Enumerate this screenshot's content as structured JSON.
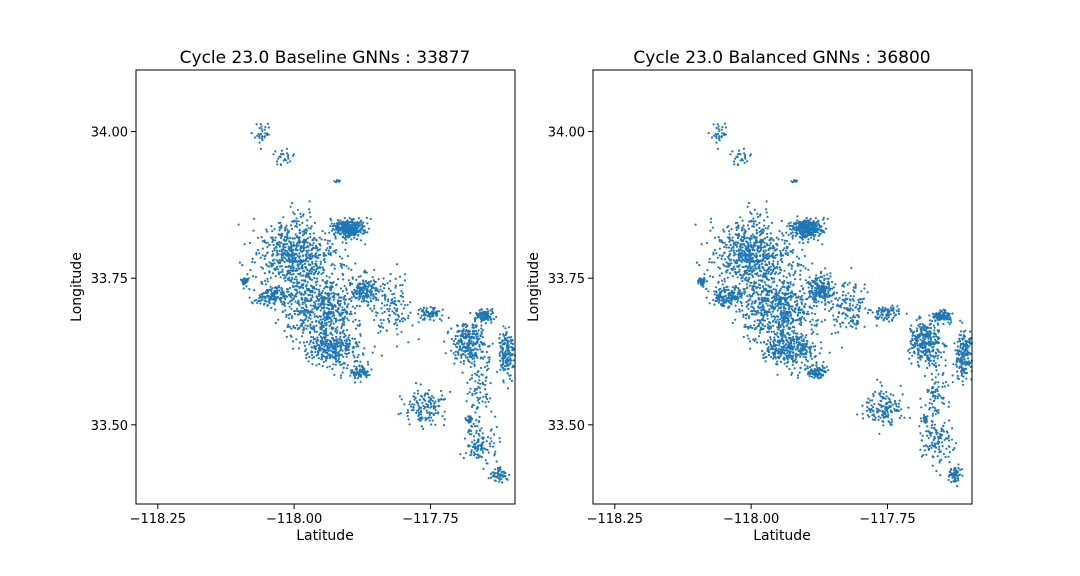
{
  "figure": {
    "background": "#ffffff"
  },
  "chart_data": [
    {
      "type": "scatter",
      "title": "Cycle 23.0 Baseline GNNs : 33877",
      "xlabel": "Latitude",
      "ylabel": "Longitude",
      "xlim": [
        -118.29,
        -117.595
      ],
      "ylim": [
        33.365,
        34.105
      ],
      "xticks": [
        -118.25,
        -118.0,
        -117.75
      ],
      "xtick_labels": [
        "−118.25",
        "−118.00",
        "−117.75"
      ],
      "yticks": [
        33.5,
        33.75,
        34.0
      ],
      "ytick_labels": [
        "33.50",
        "33.75",
        "34.00"
      ],
      "grid": false,
      "marker_color": "#1f77b4",
      "point_count": 33877,
      "clusters": [
        {
          "x": -118.06,
          "y": 33.99,
          "spread_x": 0.02,
          "spread_y": 0.02,
          "n": 30
        },
        {
          "x": -118.02,
          "y": 33.955,
          "spread_x": 0.015,
          "spread_y": 0.012,
          "n": 25
        },
        {
          "x": -117.92,
          "y": 33.915,
          "spread_x": 0.005,
          "spread_y": 0.003,
          "n": 8
        },
        {
          "x": -118.0,
          "y": 33.79,
          "spread_x": 0.055,
          "spread_y": 0.05,
          "n": 650
        },
        {
          "x": -117.9,
          "y": 33.835,
          "spread_x": 0.025,
          "spread_y": 0.015,
          "n": 320
        },
        {
          "x": -118.04,
          "y": 33.72,
          "spread_x": 0.03,
          "spread_y": 0.015,
          "n": 140
        },
        {
          "x": -118.09,
          "y": 33.745,
          "spread_x": 0.006,
          "spread_y": 0.005,
          "n": 40
        },
        {
          "x": -117.95,
          "y": 33.7,
          "spread_x": 0.06,
          "spread_y": 0.05,
          "n": 600
        },
        {
          "x": -117.93,
          "y": 33.63,
          "spread_x": 0.04,
          "spread_y": 0.025,
          "n": 300
        },
        {
          "x": -117.88,
          "y": 33.59,
          "spread_x": 0.015,
          "spread_y": 0.01,
          "n": 80
        },
        {
          "x": -117.87,
          "y": 33.73,
          "spread_x": 0.02,
          "spread_y": 0.02,
          "n": 150
        },
        {
          "x": -117.82,
          "y": 33.7,
          "spread_x": 0.03,
          "spread_y": 0.04,
          "n": 120
        },
        {
          "x": -117.75,
          "y": 33.69,
          "spread_x": 0.02,
          "spread_y": 0.01,
          "n": 70
        },
        {
          "x": -117.68,
          "y": 33.64,
          "spread_x": 0.025,
          "spread_y": 0.03,
          "n": 250
        },
        {
          "x": -117.65,
          "y": 33.685,
          "spread_x": 0.015,
          "spread_y": 0.008,
          "n": 90
        },
        {
          "x": -117.61,
          "y": 33.62,
          "spread_x": 0.012,
          "spread_y": 0.035,
          "n": 160
        },
        {
          "x": -117.66,
          "y": 33.57,
          "spread_x": 0.02,
          "spread_y": 0.06,
          "n": 90
        },
        {
          "x": -117.76,
          "y": 33.53,
          "spread_x": 0.03,
          "spread_y": 0.025,
          "n": 140
        },
        {
          "x": -117.66,
          "y": 33.47,
          "spread_x": 0.025,
          "spread_y": 0.03,
          "n": 110
        },
        {
          "x": -117.625,
          "y": 33.415,
          "spread_x": 0.012,
          "spread_y": 0.012,
          "n": 60
        },
        {
          "x": -117.68,
          "y": 33.51,
          "spread_x": 0.006,
          "spread_y": 0.005,
          "n": 25
        }
      ]
    },
    {
      "type": "scatter",
      "title": "Cycle 23.0 Balanced GNNs : 36800",
      "xlabel": "Latitude",
      "ylabel": "Longitude",
      "xlim": [
        -118.29,
        -117.595
      ],
      "ylim": [
        33.365,
        34.105
      ],
      "xticks": [
        -118.25,
        -118.0,
        -117.75
      ],
      "xtick_labels": [
        "−118.25",
        "−118.00",
        "−117.75"
      ],
      "yticks": [
        33.5,
        33.75,
        34.0
      ],
      "ytick_labels": [
        "33.50",
        "33.75",
        "34.00"
      ],
      "grid": false,
      "marker_color": "#1f77b4",
      "point_count": 36800,
      "clusters": [
        {
          "x": -118.06,
          "y": 33.99,
          "spread_x": 0.02,
          "spread_y": 0.02,
          "n": 30
        },
        {
          "x": -118.02,
          "y": 33.955,
          "spread_x": 0.015,
          "spread_y": 0.012,
          "n": 25
        },
        {
          "x": -117.92,
          "y": 33.915,
          "spread_x": 0.005,
          "spread_y": 0.003,
          "n": 8
        },
        {
          "x": -118.0,
          "y": 33.79,
          "spread_x": 0.055,
          "spread_y": 0.05,
          "n": 700
        },
        {
          "x": -117.9,
          "y": 33.835,
          "spread_x": 0.025,
          "spread_y": 0.015,
          "n": 340
        },
        {
          "x": -118.04,
          "y": 33.72,
          "spread_x": 0.03,
          "spread_y": 0.015,
          "n": 150
        },
        {
          "x": -118.09,
          "y": 33.745,
          "spread_x": 0.006,
          "spread_y": 0.005,
          "n": 40
        },
        {
          "x": -117.95,
          "y": 33.7,
          "spread_x": 0.06,
          "spread_y": 0.05,
          "n": 640
        },
        {
          "x": -117.93,
          "y": 33.63,
          "spread_x": 0.04,
          "spread_y": 0.025,
          "n": 320
        },
        {
          "x": -117.88,
          "y": 33.59,
          "spread_x": 0.015,
          "spread_y": 0.01,
          "n": 85
        },
        {
          "x": -117.87,
          "y": 33.73,
          "spread_x": 0.02,
          "spread_y": 0.02,
          "n": 160
        },
        {
          "x": -117.82,
          "y": 33.7,
          "spread_x": 0.03,
          "spread_y": 0.04,
          "n": 130
        },
        {
          "x": -117.75,
          "y": 33.69,
          "spread_x": 0.02,
          "spread_y": 0.01,
          "n": 75
        },
        {
          "x": -117.68,
          "y": 33.64,
          "spread_x": 0.025,
          "spread_y": 0.03,
          "n": 270
        },
        {
          "x": -117.65,
          "y": 33.685,
          "spread_x": 0.015,
          "spread_y": 0.008,
          "n": 95
        },
        {
          "x": -117.61,
          "y": 33.62,
          "spread_x": 0.012,
          "spread_y": 0.035,
          "n": 170
        },
        {
          "x": -117.66,
          "y": 33.57,
          "spread_x": 0.02,
          "spread_y": 0.06,
          "n": 95
        },
        {
          "x": -117.76,
          "y": 33.53,
          "spread_x": 0.03,
          "spread_y": 0.025,
          "n": 150
        },
        {
          "x": -117.66,
          "y": 33.47,
          "spread_x": 0.025,
          "spread_y": 0.03,
          "n": 120
        },
        {
          "x": -117.625,
          "y": 33.415,
          "spread_x": 0.012,
          "spread_y": 0.012,
          "n": 65
        },
        {
          "x": -117.68,
          "y": 33.51,
          "spread_x": 0.006,
          "spread_y": 0.005,
          "n": 25
        }
      ]
    }
  ]
}
